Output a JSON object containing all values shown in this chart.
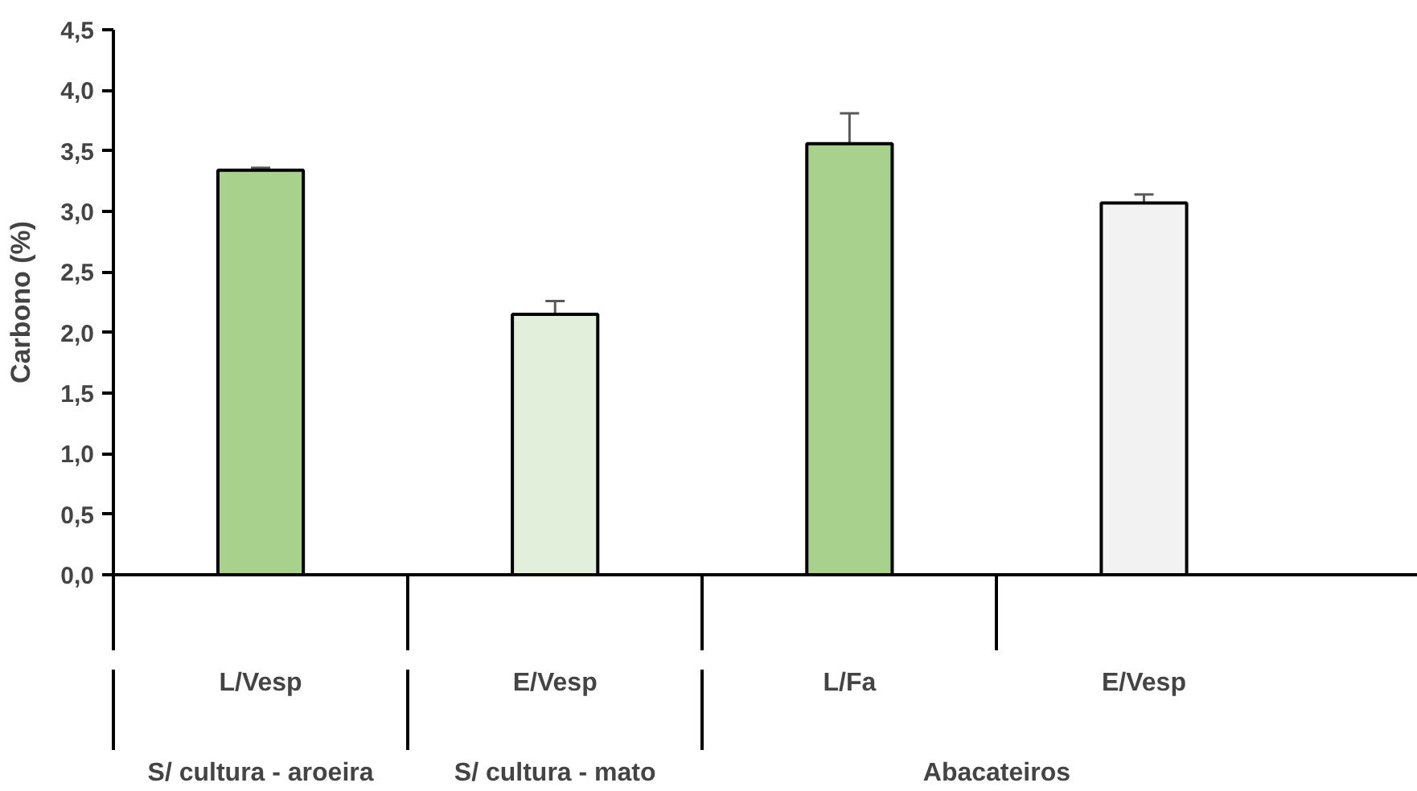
{
  "chart_data": {
    "type": "bar",
    "ylabel": "Carbono (%)",
    "categories": [
      "L/Vesp",
      "E/Vesp",
      "L/Fa",
      "E/Vesp"
    ],
    "values": [
      3.34,
      2.15,
      3.56,
      3.07
    ],
    "errors": [
      0.02,
      0.11,
      0.25,
      0.07
    ],
    "colors": [
      "#a9d18e",
      "#e2efda",
      "#a9d18e",
      "#f2f2f2"
    ],
    "annotations": [
      "S/ cultura - aroeira",
      "S/ cultura - mato",
      "Abacateiros"
    ],
    "ylim": [
      0,
      4.5
    ],
    "yticks": [
      {
        "value": 0,
        "label": "0,0"
      },
      {
        "value": 0.5,
        "label": "0,5"
      },
      {
        "value": 1,
        "label": "1,0"
      },
      {
        "value": 1.5,
        "label": "1,5"
      },
      {
        "value": 2,
        "label": "2,0"
      },
      {
        "value": 2.5,
        "label": "2,5"
      },
      {
        "value": 3,
        "label": "3,0"
      },
      {
        "value": 3.5,
        "label": "3,5"
      },
      {
        "value": 4,
        "label": "4,0"
      },
      {
        "value": 4.5,
        "label": "4,5"
      }
    ],
    "grid": false
  }
}
